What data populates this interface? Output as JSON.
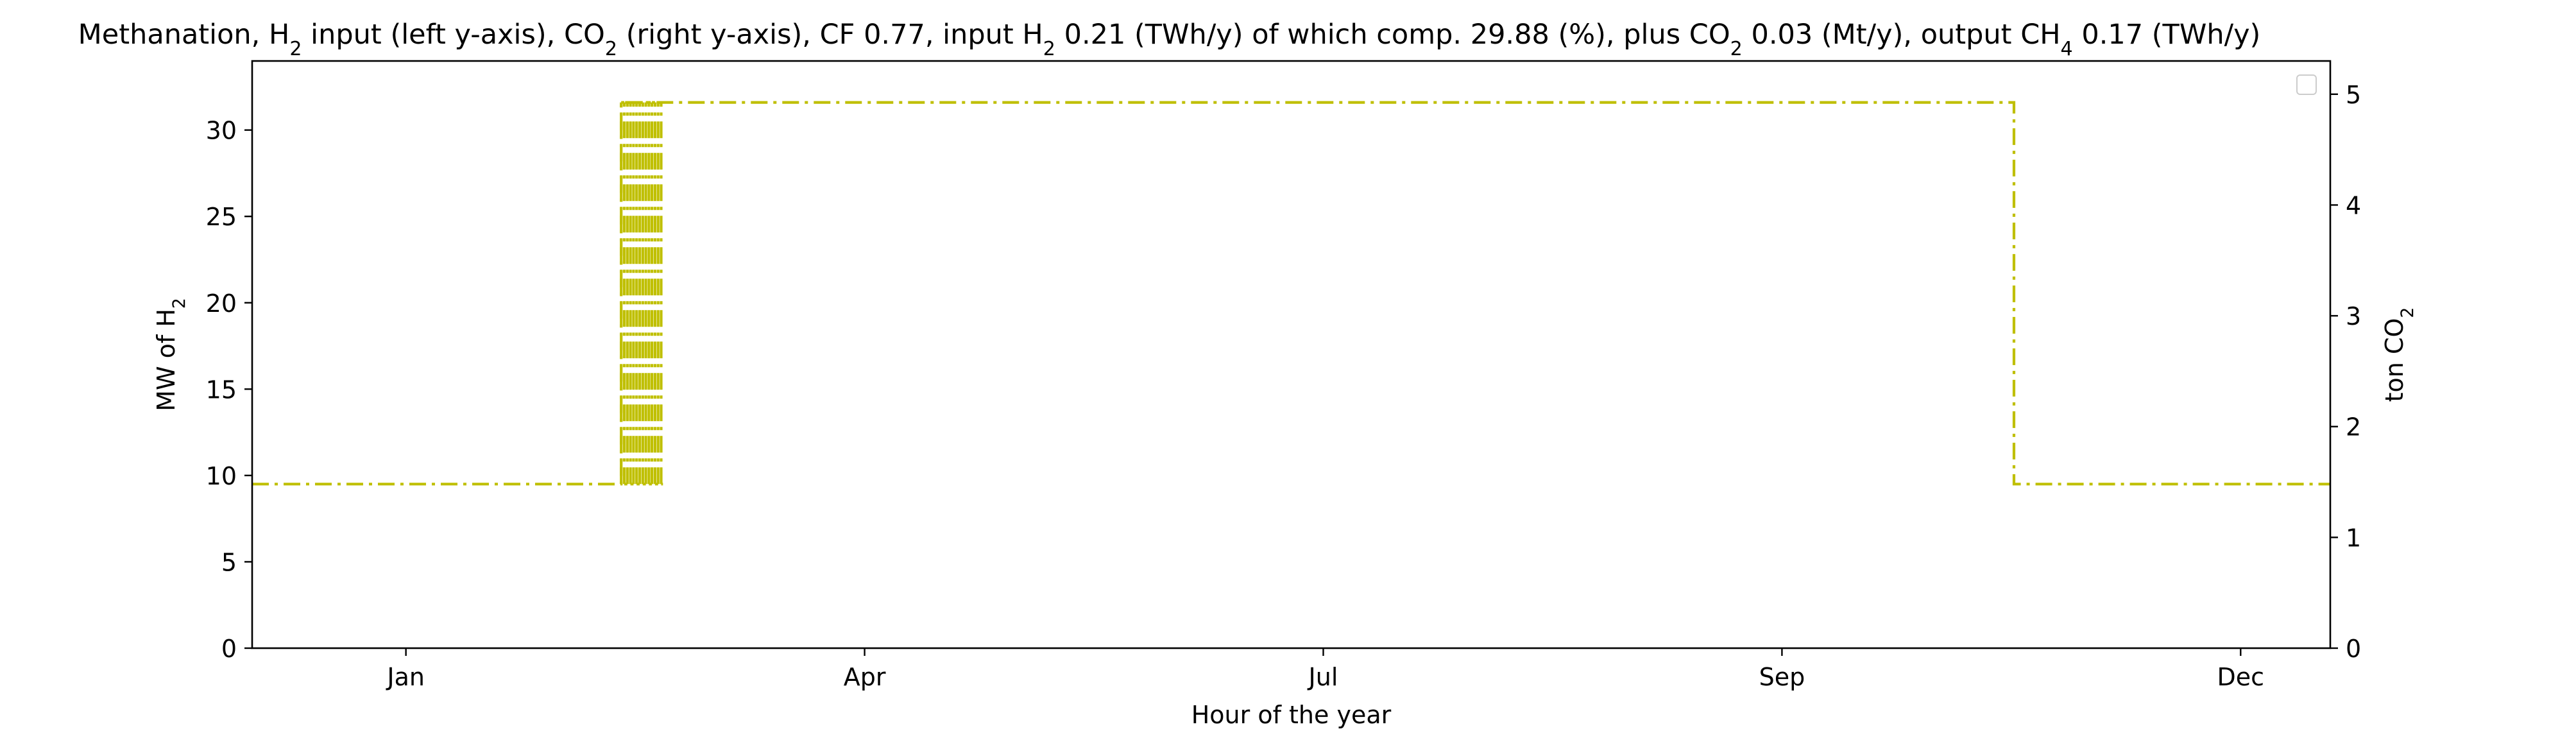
{
  "chart_data": {
    "type": "line",
    "title_parts": [
      {
        "t": "Methanation, H"
      },
      {
        "t": "2",
        "sub": true
      },
      {
        "t": " input (left y-axis), CO"
      },
      {
        "t": "2",
        "sub": true
      },
      {
        "t": " (right y-axis), CF 0.77, input H"
      },
      {
        "t": "2",
        "sub": true
      },
      {
        "t": " 0.21 (TWh/y) of which comp. 29.88 (%), plus CO"
      },
      {
        "t": "2",
        "sub": true
      },
      {
        "t": " 0.03 (Mt/y), output CH"
      },
      {
        "t": "4",
        "sub": true
      },
      {
        "t": " 0.17 (TWh/y)"
      }
    ],
    "xlabel": "Hour of the year",
    "ylabel_left_parts": [
      {
        "t": "MW of H"
      },
      {
        "t": "2",
        "sub": true
      }
    ],
    "ylabel_right_parts": [
      {
        "t": "ton CO"
      },
      {
        "t": "2",
        "sub": true
      }
    ],
    "xlim": [
      -700,
      8760
    ],
    "ylim_left": [
      0,
      34
    ],
    "ylim_right": [
      0,
      5.3
    ],
    "x_ticks": [
      {
        "label": "Jan",
        "value": 0
      },
      {
        "label": "Apr",
        "value": 2088
      },
      {
        "label": "Jul",
        "value": 4176
      },
      {
        "label": "Sep",
        "value": 6264
      },
      {
        "label": "Dec",
        "value": 8352
      }
    ],
    "y_ticks_left": [
      0,
      5,
      10,
      15,
      20,
      25,
      30
    ],
    "y_ticks_right": [
      0,
      1,
      2,
      3,
      4,
      5
    ],
    "grid": false,
    "legend": "top-right (empty)",
    "series": [
      {
        "axis": "left",
        "style": "dash-dot",
        "color": "#bfbf00",
        "low": 9.5,
        "high": 31.6,
        "base": [
          [
            -700,
            9.5
          ],
          [
            980,
            9.5
          ],
          [
            980,
            31.6
          ],
          [
            7320,
            31.6
          ],
          [
            7320,
            9.5
          ],
          [
            8760,
            9.5
          ]
        ],
        "oscillation": {
          "x_start": 980,
          "x_end": 1170,
          "step": 14
        }
      }
    ]
  }
}
